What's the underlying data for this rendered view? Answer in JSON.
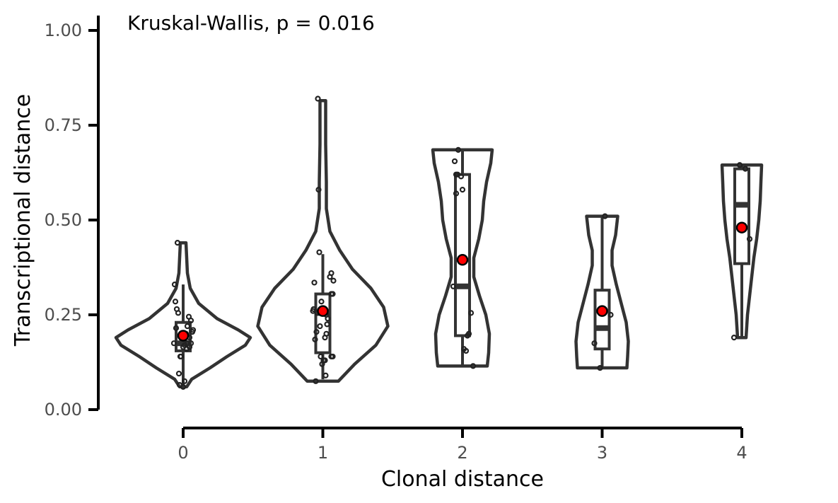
{
  "chart_data": {
    "type": "violin",
    "title": "",
    "annotation": "Kruskal-Wallis, p = 0.016",
    "xlabel": "Clonal distance",
    "ylabel": "Transcriptional distance",
    "categories": [
      "0",
      "1",
      "2",
      "3",
      "4"
    ],
    "ylim": [
      0,
      1
    ],
    "yticks": [
      0.0,
      0.25,
      0.5,
      0.75,
      1.0
    ],
    "ytick_labels": [
      "0.00",
      "0.25",
      "0.50",
      "0.75",
      "1.00"
    ],
    "grid": false,
    "colors": {
      "outline": "#333333",
      "mean_point": "#ff0000",
      "axis": "#000000"
    },
    "groups": [
      {
        "category": "0",
        "box": {
          "lower_whisker": 0.06,
          "q1": 0.155,
          "median": 0.175,
          "q3": 0.23,
          "upper_whisker": 0.33
        },
        "mean": 0.195,
        "violin": [
          [
            0.06,
            0.05
          ],
          [
            0.08,
            0.12
          ],
          [
            0.11,
            0.38
          ],
          [
            0.14,
            0.62
          ],
          [
            0.17,
            0.88
          ],
          [
            0.19,
            0.95
          ],
          [
            0.21,
            0.78
          ],
          [
            0.24,
            0.48
          ],
          [
            0.28,
            0.22
          ],
          [
            0.32,
            0.1
          ],
          [
            0.36,
            0.06
          ],
          [
            0.4,
            0.05
          ],
          [
            0.44,
            0.04
          ]
        ],
        "points": [
          [
            -0.08,
            0.44
          ],
          [
            -0.12,
            0.33
          ],
          [
            -0.11,
            0.285
          ],
          [
            -0.09,
            0.265
          ],
          [
            -0.07,
            0.255
          ],
          [
            -0.1,
            0.215
          ],
          [
            0.08,
            0.245
          ],
          [
            0.11,
            0.235
          ],
          [
            0.06,
            0.22
          ],
          [
            0.14,
            0.21
          ],
          [
            0.13,
            0.205
          ],
          [
            0.04,
            0.2
          ],
          [
            0.09,
            0.19
          ],
          [
            -0.13,
            0.175
          ],
          [
            0.06,
            0.175
          ],
          [
            0.11,
            0.175
          ],
          [
            0.02,
            0.17
          ],
          [
            0.09,
            0.165
          ],
          [
            0.0,
            0.165
          ],
          [
            0.05,
            0.16
          ],
          [
            -0.03,
            0.14
          ],
          [
            -0.04,
            0.14
          ],
          [
            -0.06,
            0.095
          ],
          [
            0.02,
            0.075
          ],
          [
            -0.05,
            0.065
          ],
          [
            0.0,
            0.06
          ]
        ]
      },
      {
        "category": "1",
        "box": {
          "lower_whisker": 0.08,
          "q1": 0.15,
          "median": 0.255,
          "q3": 0.305,
          "upper_whisker": 0.41
        },
        "mean": 0.26,
        "violin": [
          [
            0.075,
            0.22
          ],
          [
            0.12,
            0.45
          ],
          [
            0.17,
            0.75
          ],
          [
            0.22,
            0.92
          ],
          [
            0.27,
            0.86
          ],
          [
            0.32,
            0.68
          ],
          [
            0.37,
            0.42
          ],
          [
            0.42,
            0.24
          ],
          [
            0.47,
            0.1
          ],
          [
            0.53,
            0.05
          ],
          [
            0.6,
            0.05
          ],
          [
            0.7,
            0.04
          ],
          [
            0.78,
            0.04
          ],
          [
            0.815,
            0.04
          ]
        ],
        "points": [
          [
            -0.07,
            0.82
          ],
          [
            -0.06,
            0.58
          ],
          [
            -0.05,
            0.415
          ],
          [
            0.12,
            0.36
          ],
          [
            0.1,
            0.35
          ],
          [
            0.15,
            0.34
          ],
          [
            -0.12,
            0.335
          ],
          [
            0.12,
            0.305
          ],
          [
            0.14,
            0.305
          ],
          [
            -0.02,
            0.285
          ],
          [
            -0.13,
            0.265
          ],
          [
            -0.14,
            0.26
          ],
          [
            -0.08,
            0.255
          ],
          [
            0.05,
            0.25
          ],
          [
            0.07,
            0.24
          ],
          [
            -0.04,
            0.22
          ],
          [
            0.06,
            0.225
          ],
          [
            -0.09,
            0.205
          ],
          [
            0.05,
            0.2
          ],
          [
            0.03,
            0.19
          ],
          [
            -0.11,
            0.185
          ],
          [
            -0.03,
            0.14
          ],
          [
            0.12,
            0.14
          ],
          [
            0.14,
            0.14
          ],
          [
            0.01,
            0.13
          ],
          [
            0.03,
            0.13
          ],
          [
            -0.01,
            0.12
          ],
          [
            0.04,
            0.09
          ],
          [
            -0.1,
            0.075
          ]
        ]
      },
      {
        "category": "2",
        "box": {
          "lower_whisker": 0.115,
          "q1": 0.195,
          "median": 0.325,
          "q3": 0.62,
          "upper_whisker": 0.685
        },
        "mean": 0.395,
        "violin": [
          [
            0.115,
            0.35
          ],
          [
            0.15,
            0.37
          ],
          [
            0.2,
            0.38
          ],
          [
            0.25,
            0.33
          ],
          [
            0.3,
            0.24
          ],
          [
            0.35,
            0.16
          ],
          [
            0.4,
            0.16
          ],
          [
            0.45,
            0.23
          ],
          [
            0.5,
            0.28
          ],
          [
            0.55,
            0.3
          ],
          [
            0.6,
            0.34
          ],
          [
            0.65,
            0.4
          ],
          [
            0.685,
            0.42
          ]
        ],
        "points": [
          [
            -0.06,
            0.685
          ],
          [
            -0.11,
            0.655
          ],
          [
            -0.09,
            0.62
          ],
          [
            -0.07,
            0.62
          ],
          [
            -0.02,
            0.615
          ],
          [
            -0.09,
            0.57
          ],
          [
            0.0,
            0.58
          ],
          [
            -0.13,
            0.325
          ],
          [
            0.12,
            0.255
          ],
          [
            0.09,
            0.2
          ],
          [
            0.07,
            0.195
          ],
          [
            0.02,
            0.16
          ],
          [
            0.05,
            0.155
          ],
          [
            0.15,
            0.115
          ]
        ]
      },
      {
        "category": "3",
        "box": {
          "lower_whisker": 0.11,
          "q1": 0.16,
          "median": 0.215,
          "q3": 0.315,
          "upper_whisker": 0.51
        },
        "mean": 0.26,
        "violin": [
          [
            0.11,
            0.35
          ],
          [
            0.14,
            0.36
          ],
          [
            0.18,
            0.37
          ],
          [
            0.23,
            0.34
          ],
          [
            0.28,
            0.27
          ],
          [
            0.33,
            0.2
          ],
          [
            0.38,
            0.14
          ],
          [
            0.42,
            0.14
          ],
          [
            0.46,
            0.19
          ],
          [
            0.51,
            0.22
          ]
        ],
        "points": [
          [
            -0.11,
            0.175
          ],
          [
            0.12,
            0.25
          ],
          [
            0.04,
            0.51
          ],
          [
            -0.03,
            0.11
          ]
        ]
      },
      {
        "category": "4",
        "box": {
          "lower_whisker": 0.19,
          "q1": 0.385,
          "median": 0.54,
          "q3": 0.635,
          "upper_whisker": 0.645
        },
        "mean": 0.48,
        "violin": [
          [
            0.19,
            0.06
          ],
          [
            0.25,
            0.08
          ],
          [
            0.3,
            0.11
          ],
          [
            0.35,
            0.14
          ],
          [
            0.4,
            0.17
          ],
          [
            0.45,
            0.21
          ],
          [
            0.5,
            0.24
          ],
          [
            0.55,
            0.26
          ],
          [
            0.6,
            0.27
          ],
          [
            0.645,
            0.28
          ]
        ],
        "points": [
          [
            -0.03,
            0.645
          ],
          [
            0.05,
            0.635
          ],
          [
            0.11,
            0.45
          ],
          [
            -0.11,
            0.19
          ]
        ]
      }
    ]
  }
}
